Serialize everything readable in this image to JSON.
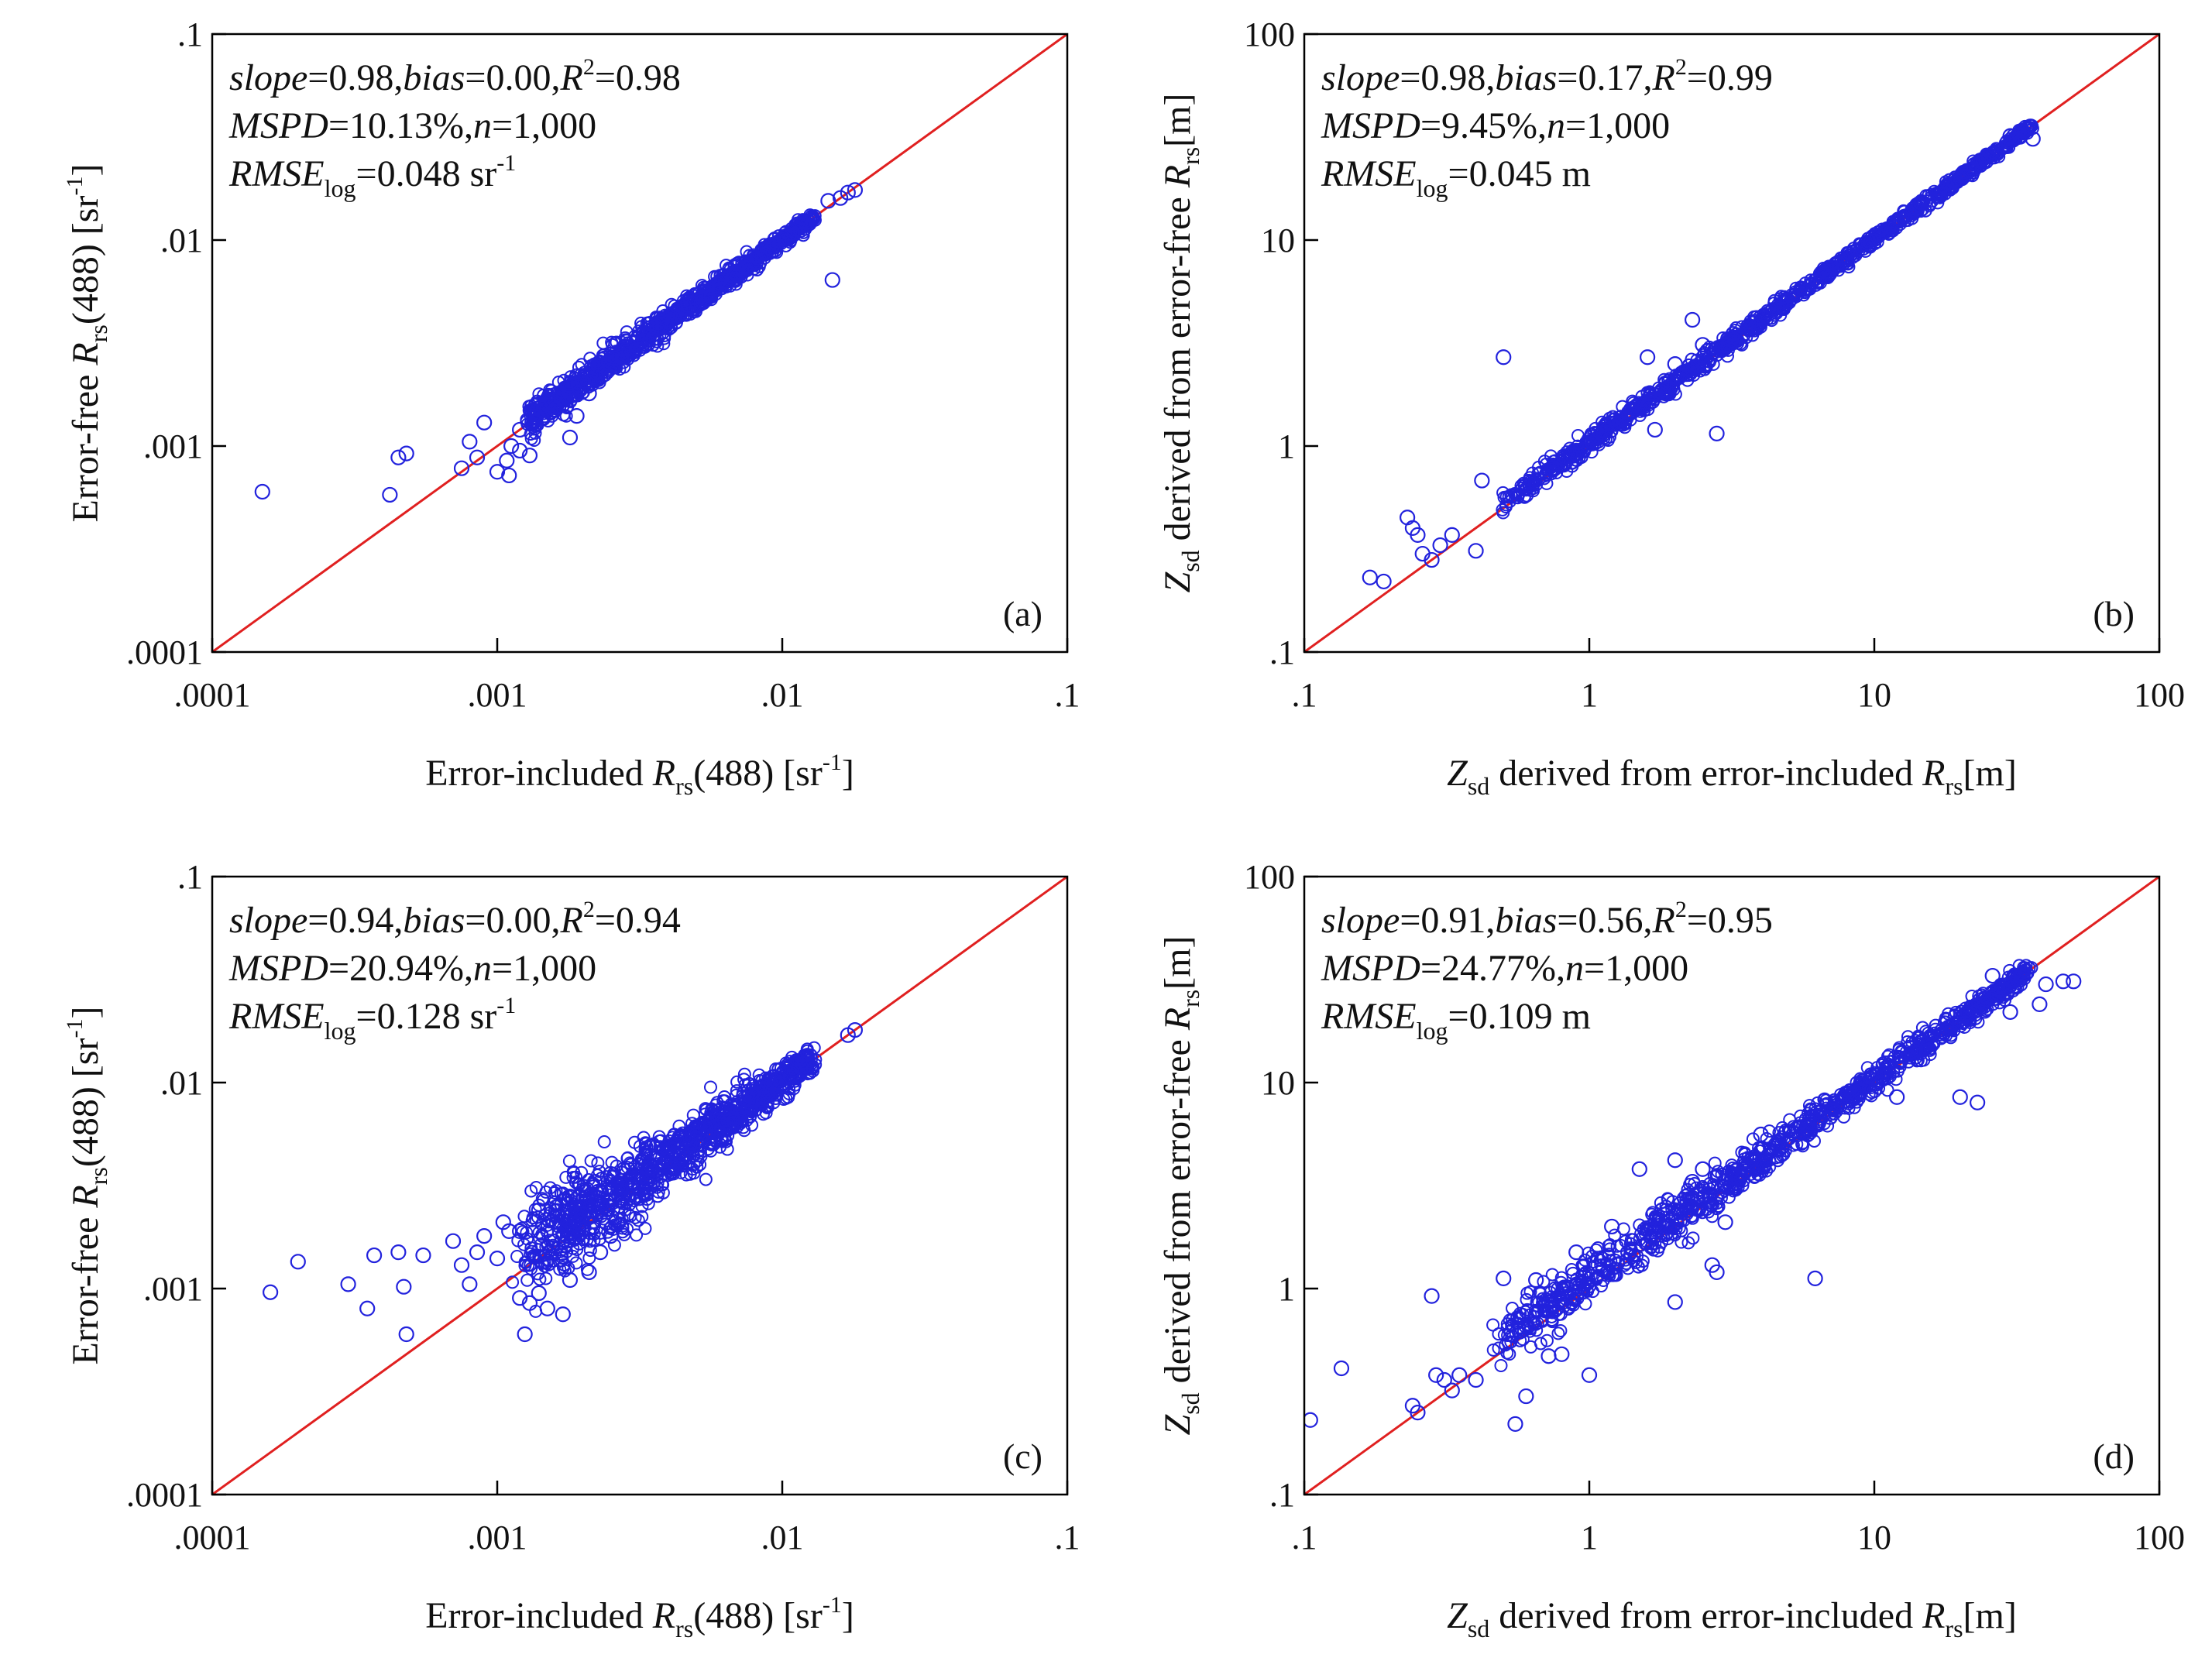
{
  "colors": {
    "points": "#2222dd",
    "identity_line": "#e02020",
    "axes": "#000000"
  },
  "chart_data": [
    {
      "type": "scatter",
      "panel_label": "(a)",
      "x_scale": "log",
      "y_scale": "log",
      "xlim": [
        0.0001,
        0.1
      ],
      "ylim": [
        0.0001,
        0.1
      ],
      "xticks": [
        ".0001",
        ".001",
        ".01",
        ".1"
      ],
      "yticks": [
        ".0001",
        ".001",
        ".01",
        ".1"
      ],
      "xlabel": {
        "pre": "Error-included ",
        "var": "R",
        "sub": "rs",
        "post": "(488) [sr",
        "sup": "-1",
        "end": "]"
      },
      "ylabel": {
        "pre": "Error-free ",
        "var": "R",
        "sub": "rs",
        "post": "(488) [sr",
        "sup": "-1",
        "end": "]"
      },
      "stats": {
        "slope": "0.98",
        "bias": "0.00",
        "r2": "0.98",
        "mspd": "10.13%",
        "n": "1,000",
        "rmse": "0.048",
        "rmse_unit": " sr",
        "rmse_sup": "-1"
      },
      "identity_line": true,
      "cloud": {
        "x_from": 0.0013,
        "x_to": 0.013,
        "slope": 0.98,
        "spread_low": 0.07,
        "spread_high": 0.03,
        "count": 900
      },
      "points": [
        [
          0.00015,
          0.0006
        ],
        [
          0.00042,
          0.00058
        ],
        [
          0.00045,
          0.00088
        ],
        [
          0.00048,
          0.00092
        ],
        [
          0.00075,
          0.00078
        ],
        [
          0.0008,
          0.00105
        ],
        [
          0.00085,
          0.00088
        ],
        [
          0.0009,
          0.0013
        ],
        [
          0.001,
          0.00075
        ],
        [
          0.00108,
          0.00085
        ],
        [
          0.0011,
          0.00072
        ],
        [
          0.00112,
          0.001
        ],
        [
          0.0012,
          0.00095
        ],
        [
          0.0013,
          0.0009
        ],
        [
          0.0012,
          0.0012
        ],
        [
          0.0014,
          0.0016
        ],
        [
          0.0016,
          0.0015
        ],
        [
          0.0018,
          0.0011
        ],
        [
          0.0019,
          0.0014
        ],
        [
          0.0021,
          0.0018
        ],
        [
          0.015,
          0.0064
        ],
        [
          0.016,
          0.016
        ],
        [
          0.017,
          0.017
        ],
        [
          0.018,
          0.0175
        ],
        [
          0.0145,
          0.0155
        ]
      ]
    },
    {
      "type": "scatter",
      "panel_label": "(b)",
      "x_scale": "log",
      "y_scale": "log",
      "xlim": [
        0.1,
        100
      ],
      "ylim": [
        0.1,
        100
      ],
      "xticks": [
        ".1",
        "1",
        "10",
        "100"
      ],
      "yticks": [
        ".1",
        "1",
        "10",
        "100"
      ],
      "xlabel": {
        "zvar": "Z",
        "zsub": "sd",
        "pre": " derived from error-included ",
        "var": "R",
        "sub": "rs",
        "post": "[m]"
      },
      "ylabel": {
        "zvar": "Z",
        "zsub": "sd",
        "pre": " derived from error-free ",
        "var": "R",
        "sub": "rs",
        "post": "[m]"
      },
      "stats": {
        "slope": "0.98",
        "bias": "0.17",
        "r2": "0.99",
        "mspd": "9.45%",
        "n": "1,000",
        "rmse": "0.045",
        "rmse_unit": " m",
        "rmse_sup": ""
      },
      "identity_line": true,
      "cloud": {
        "x_from": 0.5,
        "x_to": 36,
        "slope": 0.99,
        "spread_low": 0.05,
        "spread_high": 0.02,
        "count": 900
      },
      "points": [
        [
          0.17,
          0.23
        ],
        [
          0.19,
          0.22
        ],
        [
          0.23,
          0.45
        ],
        [
          0.24,
          0.4
        ],
        [
          0.25,
          0.37
        ],
        [
          0.26,
          0.3
        ],
        [
          0.28,
          0.28
        ],
        [
          0.3,
          0.33
        ],
        [
          0.33,
          0.37
        ],
        [
          0.4,
          0.31
        ],
        [
          0.42,
          0.68
        ],
        [
          0.5,
          2.7
        ],
        [
          1.6,
          2.7
        ],
        [
          1.7,
          1.2
        ],
        [
          2.3,
          4.1
        ],
        [
          2.5,
          3.1
        ],
        [
          2.8,
          1.15
        ],
        [
          3.2,
          3.5
        ],
        [
          2.0,
          2.5
        ],
        [
          1.9,
          1.8
        ],
        [
          2.6,
          2.9
        ],
        [
          30,
          32
        ],
        [
          33,
          34
        ],
        [
          36,
          31
        ]
      ]
    },
    {
      "type": "scatter",
      "panel_label": "(c)",
      "x_scale": "log",
      "y_scale": "log",
      "xlim": [
        0.0001,
        0.1
      ],
      "ylim": [
        0.0001,
        0.1
      ],
      "xticks": [
        ".0001",
        ".001",
        ".01",
        ".1"
      ],
      "yticks": [
        ".0001",
        ".001",
        ".01",
        ".1"
      ],
      "xlabel": {
        "pre": "Error-included ",
        "var": "R",
        "sub": "rs",
        "post": "(488) [sr",
        "sup": "-1",
        "end": "]"
      },
      "ylabel": {
        "pre": "Error-free ",
        "var": "R",
        "sub": "rs",
        "post": "(488) [sr",
        "sup": "-1",
        "end": "]"
      },
      "stats": {
        "slope": "0.94",
        "bias": "0.00",
        "r2": "0.94",
        "mspd": "20.94%",
        "n": "1,000",
        "rmse": "0.128",
        "rmse_unit": " sr",
        "rmse_sup": "-1"
      },
      "identity_line": true,
      "cloud": {
        "x_from": 0.0013,
        "x_to": 0.013,
        "slope": 0.94,
        "spread_low": 0.22,
        "spread_high": 0.05,
        "count": 1000
      },
      "points": [
        [
          0.00016,
          0.00096
        ],
        [
          0.0002,
          0.00135
        ],
        [
          0.0003,
          0.00105
        ],
        [
          0.00035,
          0.0008
        ],
        [
          0.00037,
          0.00145
        ],
        [
          0.00045,
          0.0015
        ],
        [
          0.00047,
          0.00102
        ],
        [
          0.00048,
          0.0006
        ],
        [
          0.00055,
          0.00145
        ],
        [
          0.0007,
          0.0017
        ],
        [
          0.00075,
          0.0013
        ],
        [
          0.0008,
          0.00105
        ],
        [
          0.00085,
          0.0015
        ],
        [
          0.0009,
          0.0018
        ],
        [
          0.001,
          0.0014
        ],
        [
          0.00105,
          0.0021
        ],
        [
          0.0011,
          0.0019
        ],
        [
          0.0012,
          0.0009
        ],
        [
          0.00125,
          0.0006
        ],
        [
          0.0013,
          0.00085
        ],
        [
          0.0014,
          0.00095
        ],
        [
          0.0015,
          0.0008
        ],
        [
          0.0017,
          0.00075
        ],
        [
          0.0018,
          0.0011
        ],
        [
          0.0021,
          0.0012
        ],
        [
          0.0023,
          0.0015
        ],
        [
          0.0025,
          0.0018
        ],
        [
          0.0014,
          0.0024
        ],
        [
          0.0016,
          0.0026
        ],
        [
          0.0018,
          0.0028
        ],
        [
          0.002,
          0.003
        ],
        [
          0.0022,
          0.0033
        ],
        [
          0.0025,
          0.0036
        ],
        [
          0.0012,
          0.0019
        ],
        [
          0.017,
          0.017
        ],
        [
          0.018,
          0.018
        ]
      ]
    },
    {
      "type": "scatter",
      "panel_label": "(d)",
      "x_scale": "log",
      "y_scale": "log",
      "xlim": [
        0.1,
        100
      ],
      "ylim": [
        0.1,
        100
      ],
      "xticks": [
        ".1",
        "1",
        "10",
        "100"
      ],
      "yticks": [
        ".1",
        "1",
        "10",
        "100"
      ],
      "xlabel": {
        "zvar": "Z",
        "zsub": "sd",
        "pre": " derived from error-included ",
        "var": "R",
        "sub": "rs",
        "post": "[m]"
      },
      "ylabel": {
        "zvar": "Z",
        "zsub": "sd",
        "pre": " derived from error-free ",
        "var": "R",
        "sub": "rs",
        "post": "[m]"
      },
      "stats": {
        "slope": "0.91",
        "bias": "0.56",
        "r2": "0.95",
        "mspd": "24.77%",
        "n": "1,000",
        "rmse": "0.109",
        "rmse_unit": " m",
        "rmse_sup": ""
      },
      "identity_line": true,
      "cloud": {
        "x_from": 0.5,
        "x_to": 35,
        "slope": 0.97,
        "spread_low": 0.12,
        "spread_high": 0.04,
        "count": 1000
      },
      "points": [
        [
          0.105,
          0.23
        ],
        [
          0.135,
          0.41
        ],
        [
          0.24,
          0.27
        ],
        [
          0.25,
          0.25
        ],
        [
          0.28,
          0.92
        ],
        [
          0.29,
          0.38
        ],
        [
          0.31,
          0.36
        ],
        [
          0.33,
          0.32
        ],
        [
          0.35,
          0.38
        ],
        [
          0.4,
          0.36
        ],
        [
          0.5,
          1.12
        ],
        [
          0.55,
          0.22
        ],
        [
          0.6,
          0.3
        ],
        [
          0.65,
          1.1
        ],
        [
          0.72,
          0.47
        ],
        [
          0.8,
          0.48
        ],
        [
          0.9,
          1.5
        ],
        [
          1.0,
          0.38
        ],
        [
          1.2,
          2.0
        ],
        [
          1.5,
          3.8
        ],
        [
          1.8,
          2.4
        ],
        [
          2.0,
          0.86
        ],
        [
          2.0,
          4.2
        ],
        [
          2.3,
          3.3
        ],
        [
          2.5,
          3.8
        ],
        [
          2.7,
          1.3
        ],
        [
          2.8,
          1.2
        ],
        [
          3.0,
          2.1
        ],
        [
          4.0,
          5.6
        ],
        [
          6.2,
          1.12
        ],
        [
          7.0,
          6.8
        ],
        [
          12,
          8.5
        ],
        [
          20,
          8.5
        ],
        [
          23,
          8.0
        ],
        [
          40,
          30
        ],
        [
          46,
          31
        ],
        [
          50,
          31
        ],
        [
          38,
          24
        ],
        [
          30,
          22
        ],
        [
          26,
          33
        ],
        [
          33,
          33
        ]
      ]
    }
  ]
}
